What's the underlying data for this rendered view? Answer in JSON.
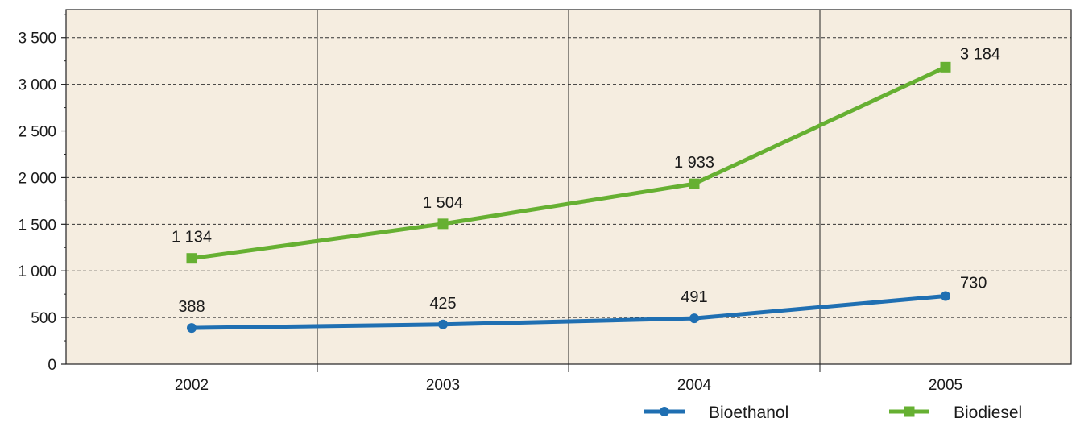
{
  "chart_data": {
    "type": "line",
    "categories": [
      "2002",
      "2003",
      "2004",
      "2005"
    ],
    "series": [
      {
        "name": "Bioethanol",
        "values": [
          388,
          425,
          491,
          730
        ],
        "data_labels": [
          "388",
          "425",
          "491",
          "730"
        ],
        "color": "#1f6fb2",
        "marker": "circle"
      },
      {
        "name": "Biodiesel",
        "values": [
          1134,
          1504,
          1933,
          3184
        ],
        "data_labels": [
          "1 134",
          "1 504",
          "1 933",
          "3 184"
        ],
        "color": "#66b032",
        "marker": "square"
      }
    ],
    "ylim": [
      0,
      3800
    ],
    "yticks": [
      0,
      500,
      1000,
      1500,
      2000,
      2500,
      3000,
      3500
    ],
    "ytick_labels": [
      "0",
      "500",
      "1 000",
      "1 500",
      "2 000",
      "2 500",
      "3 000",
      "3 500"
    ],
    "title": "",
    "xlabel": "",
    "ylabel": "",
    "grid": "horizontal-dashed",
    "legend_position": "bottom-right",
    "plot_background": "#f5ede0"
  }
}
